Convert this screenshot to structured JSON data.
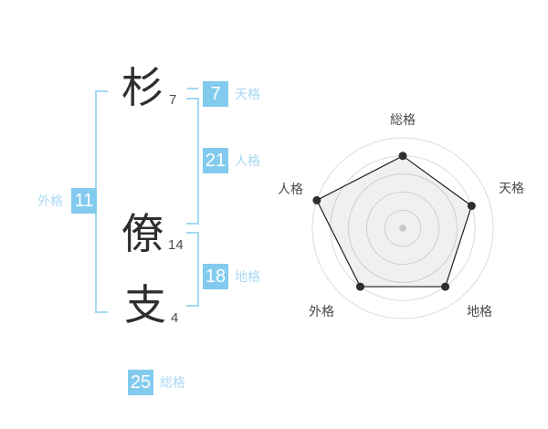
{
  "name_display": {
    "characters": [
      {
        "char": "杉",
        "strokes": "7"
      },
      {
        "char": "僚",
        "strokes": "14"
      },
      {
        "char": "支",
        "strokes": "4"
      }
    ]
  },
  "categories": {
    "tenkaku": {
      "label": "天格",
      "value": "7"
    },
    "jinkaku": {
      "label": "人格",
      "value": "21"
    },
    "chikaku": {
      "label": "地格",
      "value": "18"
    },
    "gaikaku": {
      "label": "外格",
      "value": "11"
    },
    "soukaku": {
      "label": "総格",
      "value": "25"
    }
  },
  "colors": {
    "value_box": "#83cbee",
    "category_label": "#a9d9f3",
    "bracket": "#a3d8f3",
    "radar_ring": "#dcdcdc",
    "radar_line": "#1f1f1f",
    "radar_dot": "#2e2e2e",
    "radar_center_dot": "#c6c6c6",
    "radar_fill": "#000000",
    "radar_fill_opacity": 0.06
  },
  "chart_data": {
    "type": "radar",
    "axes": [
      "総格",
      "天格",
      "地格",
      "外格",
      "人格"
    ],
    "values": [
      4,
      4,
      4,
      4,
      5
    ],
    "max": 5,
    "rings": 5,
    "start_angle_deg": 90,
    "direction": "clockwise",
    "grid": "circular",
    "legend": "none"
  }
}
